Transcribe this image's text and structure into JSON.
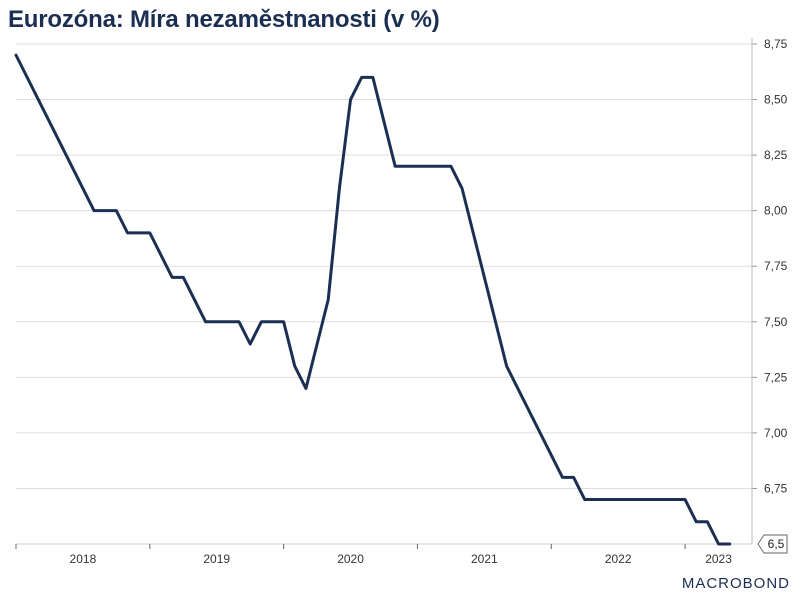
{
  "title": "Eurozóna: Míra nezaměstnanosti (v %)",
  "logo": "MACROBOND",
  "colors": {
    "line": "#1b2f52",
    "grid": "#dddddd",
    "text": "#333333",
    "title": "#1b2f52"
  },
  "chart_data": {
    "type": "line",
    "title": "Eurozóna: Míra nezaměstnanosti (v %)",
    "xlabel": "",
    "ylabel": "",
    "x_tick_labels": [
      "2018",
      "2019",
      "2020",
      "2021",
      "2022",
      "2023"
    ],
    "y_ticks": [
      "6,75",
      "7,00",
      "7,25",
      "7,50",
      "7,75",
      "8,00",
      "8,25",
      "8,50",
      "8,75"
    ],
    "ylim": [
      6.5,
      8.75
    ],
    "y_axis_position": "right",
    "grid": true,
    "last_value_label": "6,5",
    "series": [
      {
        "values": [
          {
            "x": "2018-01",
            "y": 8.7
          },
          {
            "x": "2018-08",
            "y": 8.0
          },
          {
            "x": "2018-10",
            "y": 8.0
          },
          {
            "x": "2018-11",
            "y": 7.9
          },
          {
            "x": "2019-01",
            "y": 7.9
          },
          {
            "x": "2019-03",
            "y": 7.7
          },
          {
            "x": "2019-04",
            "y": 7.7
          },
          {
            "x": "2019-06",
            "y": 7.5
          },
          {
            "x": "2019-09",
            "y": 7.5
          },
          {
            "x": "2019-10",
            "y": 7.4
          },
          {
            "x": "2019-11",
            "y": 7.5
          },
          {
            "x": "2020-01",
            "y": 7.5
          },
          {
            "x": "2020-02",
            "y": 7.3
          },
          {
            "x": "2020-03",
            "y": 7.2
          },
          {
            "x": "2020-05",
            "y": 7.6
          },
          {
            "x": "2020-06",
            "y": 8.1
          },
          {
            "x": "2020-07",
            "y": 8.5
          },
          {
            "x": "2020-08",
            "y": 8.6
          },
          {
            "x": "2020-09",
            "y": 8.6
          },
          {
            "x": "2020-11",
            "y": 8.2
          },
          {
            "x": "2021-04",
            "y": 8.2
          },
          {
            "x": "2021-05",
            "y": 8.1
          },
          {
            "x": "2021-09",
            "y": 7.3
          },
          {
            "x": "2022-02",
            "y": 6.8
          },
          {
            "x": "2022-03",
            "y": 6.8
          },
          {
            "x": "2022-04",
            "y": 6.7
          },
          {
            "x": "2023-01",
            "y": 6.7
          },
          {
            "x": "2023-02",
            "y": 6.6
          },
          {
            "x": "2023-03",
            "y": 6.6
          },
          {
            "x": "2023-04",
            "y": 6.5
          },
          {
            "x": "2023-05",
            "y": 6.5
          }
        ]
      }
    ]
  }
}
